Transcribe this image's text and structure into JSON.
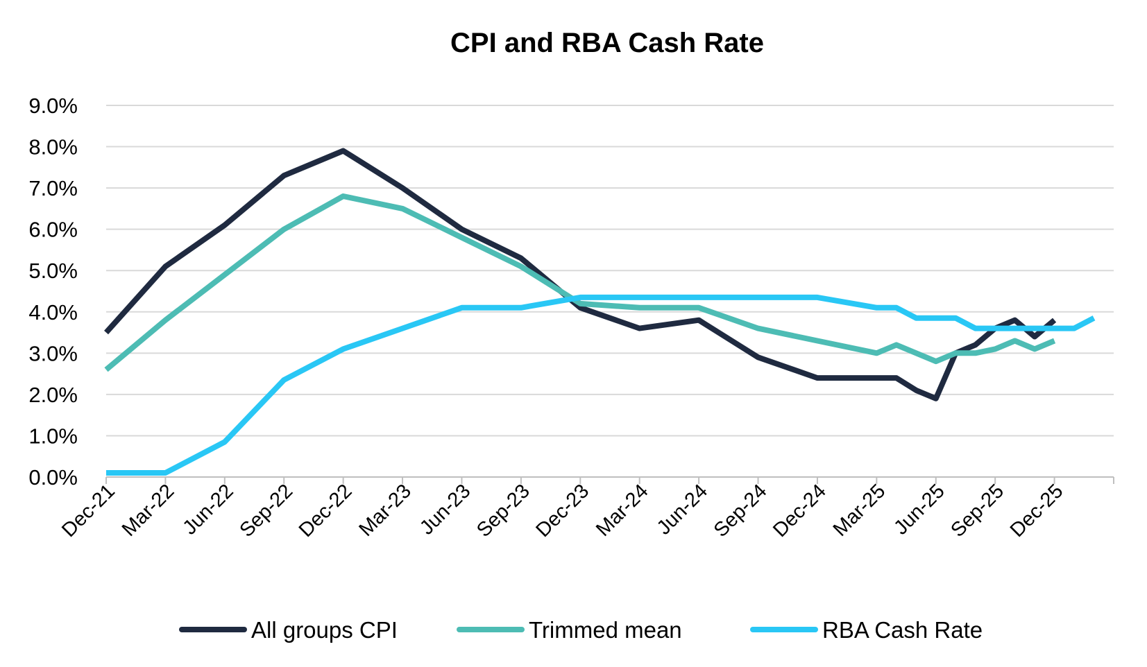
{
  "chart_data": {
    "type": "line",
    "title": "CPI and RBA Cash Rate",
    "xlabel": "",
    "ylabel": "",
    "ylim": [
      0,
      9
    ],
    "y_ticks": [
      "0.0%",
      "1.0%",
      "2.0%",
      "3.0%",
      "4.0%",
      "5.0%",
      "6.0%",
      "7.0%",
      "8.0%",
      "9.0%"
    ],
    "x_tick_labels": [
      "Dec-21",
      "Mar-22",
      "Jun-22",
      "Sep-22",
      "Dec-22",
      "Mar-23",
      "Jun-23",
      "Sep-23",
      "Dec-23",
      "Mar-24",
      "Jun-24",
      "Sep-24",
      "Dec-24",
      "Mar-25",
      "Jun-25",
      "Sep-25",
      "Dec-25"
    ],
    "x_period_months_since_dec21": [
      0,
      3,
      6,
      9,
      12,
      15,
      18,
      21,
      24,
      27,
      30,
      33,
      36,
      39,
      42,
      45,
      48
    ],
    "x_range_months": [
      0,
      51
    ],
    "grid": true,
    "legend_position": "bottom",
    "series": [
      {
        "name": "All groups CPI",
        "color": "#1f2a40",
        "x_months": [
          0,
          3,
          6,
          9,
          12,
          15,
          18,
          21,
          24,
          27,
          30,
          33,
          36,
          39,
          40,
          41,
          42,
          43,
          44,
          45,
          46,
          47,
          48
        ],
        "values": [
          3.5,
          5.1,
          6.1,
          7.3,
          7.9,
          7.0,
          6.0,
          5.3,
          4.1,
          3.6,
          3.8,
          2.9,
          2.4,
          2.4,
          2.4,
          2.1,
          1.9,
          3.0,
          3.2,
          3.6,
          3.8,
          3.4,
          3.8
        ]
      },
      {
        "name": "Trimmed mean",
        "color": "#4dbcb4",
        "x_months": [
          0,
          3,
          6,
          9,
          12,
          15,
          18,
          21,
          24,
          27,
          30,
          33,
          36,
          39,
          40,
          41,
          42,
          43,
          44,
          45,
          46,
          47,
          48
        ],
        "values": [
          2.6,
          3.8,
          4.9,
          6.0,
          6.8,
          6.5,
          5.8,
          5.1,
          4.2,
          4.1,
          4.1,
          3.6,
          3.3,
          3.0,
          3.2,
          3.0,
          2.8,
          3.0,
          3.0,
          3.1,
          3.3,
          3.1,
          3.3
        ]
      },
      {
        "name": "RBA Cash Rate",
        "color": "#29c7f5",
        "x_months": [
          0,
          3,
          6,
          9,
          12,
          15,
          18,
          21,
          24,
          27,
          30,
          33,
          36,
          39,
          40,
          41,
          42,
          43,
          44,
          45,
          46,
          47,
          48,
          49,
          50
        ],
        "values": [
          0.1,
          0.1,
          0.85,
          2.35,
          3.1,
          3.6,
          4.1,
          4.1,
          4.35,
          4.35,
          4.35,
          4.35,
          4.35,
          4.1,
          4.1,
          3.85,
          3.85,
          3.85,
          3.6,
          3.6,
          3.6,
          3.6,
          3.6,
          3.6,
          3.85
        ]
      }
    ]
  }
}
